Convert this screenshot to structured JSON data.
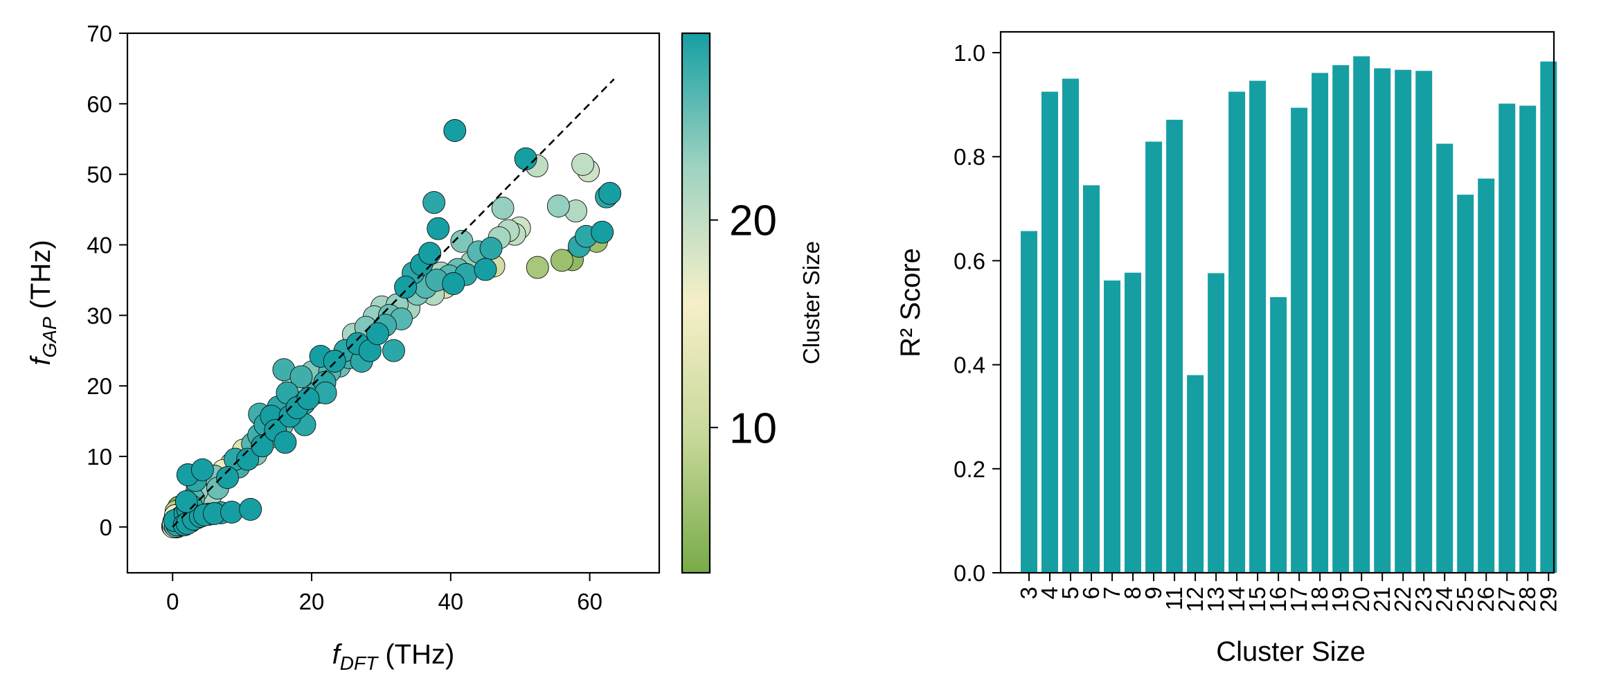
{
  "colors": {
    "bar": "#169fa3",
    "cmap": [
      "#78ab48",
      "#c6d899",
      "#f6efc8",
      "#9fd3c1",
      "#169fa3"
    ],
    "dashed_line": "#000000",
    "marker_edge": "#111111"
  },
  "chart_data": [
    {
      "type": "scatter",
      "xlabel_sym": "f",
      "xlabel_sub": "DFT",
      "xlabel_unit": " (THz)",
      "ylabel_sym": "f",
      "ylabel_sub": "GAP",
      "ylabel_unit": " (THz)",
      "xlim": [
        -6.5,
        70
      ],
      "ylim": [
        -6.5,
        70
      ],
      "xticks": [
        "0",
        "20",
        "40",
        "60"
      ],
      "yticks": [
        "0",
        "10",
        "20",
        "30",
        "40",
        "50",
        "60",
        "70"
      ],
      "reference_line": {
        "from": [
          0,
          0
        ],
        "to": [
          63.5,
          63.5
        ],
        "style": "dashed"
      },
      "colorbar": {
        "label": "Cluster Size",
        "range": [
          3,
          29
        ],
        "ticks": [
          "10",
          "20"
        ]
      },
      "points": [
        [
          0.0,
          0.1,
          12
        ],
        [
          0.1,
          0.0,
          15
        ],
        [
          0.2,
          0.3,
          5
        ],
        [
          0.3,
          0.2,
          18
        ],
        [
          0.4,
          0.1,
          25
        ],
        [
          0.5,
          0.6,
          9
        ],
        [
          0.6,
          0.3,
          28
        ],
        [
          0.7,
          0.5,
          20
        ],
        [
          0.8,
          0.2,
          13
        ],
        [
          0.9,
          0.7,
          27
        ],
        [
          0.2,
          0.8,
          6
        ],
        [
          0.5,
          1.0,
          11
        ],
        [
          0.1,
          0.5,
          22
        ],
        [
          0.3,
          0.9,
          29
        ],
        [
          0.6,
          0.0,
          4
        ],
        [
          0.8,
          1.2,
          16
        ],
        [
          1.0,
          0.8,
          26
        ],
        [
          1.1,
          1.3,
          24
        ],
        [
          1.3,
          0.9,
          10
        ],
        [
          1.4,
          1.5,
          28
        ],
        [
          1.6,
          1.2,
          21
        ],
        [
          1.8,
          1.9,
          29
        ],
        [
          1.2,
          2.0,
          7
        ],
        [
          0.9,
          2.8,
          4
        ],
        [
          0.4,
          1.6,
          17
        ],
        [
          2.0,
          1.8,
          27
        ],
        [
          2.2,
          2.4,
          29
        ],
        [
          2.5,
          2.1,
          23
        ],
        [
          2.7,
          3.0,
          28
        ],
        [
          0.5,
          2.2,
          8
        ],
        [
          1.7,
          0.3,
          29
        ],
        [
          2.1,
          0.5,
          29
        ],
        [
          2.6,
          0.8,
          28
        ],
        [
          3.0,
          1.1,
          29
        ],
        [
          3.5,
          1.3,
          28
        ],
        [
          4.0,
          1.5,
          29
        ],
        [
          4.6,
          1.7,
          29
        ],
        [
          5.2,
          1.8,
          28
        ],
        [
          6.0,
          1.9,
          29
        ],
        [
          7.0,
          2.0,
          28
        ],
        [
          8.5,
          2.1,
          29
        ],
        [
          11.2,
          2.5,
          29
        ],
        [
          2.2,
          7.4,
          29
        ],
        [
          3.3,
          6.6,
          28
        ],
        [
          4.3,
          8.1,
          29
        ],
        [
          2.0,
          3.6,
          29
        ],
        [
          3.0,
          4.0,
          26
        ],
        [
          3.5,
          5.1,
          23
        ],
        [
          4.6,
          5.3,
          14
        ],
        [
          4.0,
          6.3,
          18
        ],
        [
          5.0,
          5.8,
          20
        ],
        [
          6.0,
          7.2,
          24
        ],
        [
          5.5,
          4.5,
          22
        ],
        [
          6.5,
          5.5,
          25
        ],
        [
          7.3,
          8.0,
          15
        ],
        [
          7.9,
          7.0,
          29
        ],
        [
          8.5,
          9.0,
          12
        ],
        [
          9.0,
          9.6,
          28
        ],
        [
          9.5,
          8.5,
          27
        ],
        [
          10.2,
          10.9,
          13
        ],
        [
          10.8,
          9.6,
          29
        ],
        [
          11.5,
          11.8,
          26
        ],
        [
          12.0,
          10.3,
          24
        ],
        [
          12.4,
          13.0,
          27
        ],
        [
          12.9,
          11.5,
          29
        ],
        [
          13.3,
          14.5,
          28
        ],
        [
          13.8,
          12.6,
          22
        ],
        [
          14.2,
          15.7,
          29
        ],
        [
          14.8,
          13.7,
          29
        ],
        [
          15.2,
          17.0,
          28
        ],
        [
          15.8,
          14.5,
          25
        ],
        [
          16.0,
          22.3,
          27
        ],
        [
          16.5,
          19.0,
          28
        ],
        [
          16.9,
          15.7,
          29
        ],
        [
          17.4,
          20.5,
          21
        ],
        [
          17.9,
          16.9,
          29
        ],
        [
          18.5,
          21.3,
          27
        ],
        [
          18.9,
          17.5,
          28
        ],
        [
          19.5,
          18.2,
          29
        ],
        [
          20.1,
          22.0,
          24
        ],
        [
          20.7,
          19.0,
          27
        ],
        [
          21.3,
          24.2,
          29
        ],
        [
          21.9,
          20.5,
          28
        ],
        [
          22.6,
          22.0,
          26
        ],
        [
          23.3,
          23.5,
          29
        ],
        [
          24.0,
          22.8,
          25
        ],
        [
          24.8,
          25.0,
          28
        ],
        [
          25.4,
          24.0,
          27
        ],
        [
          26.0,
          27.3,
          22
        ],
        [
          26.6,
          26.0,
          29
        ],
        [
          27.2,
          23.5,
          28
        ],
        [
          27.8,
          28.3,
          24
        ],
        [
          28.4,
          25.0,
          29
        ],
        [
          29.0,
          29.8,
          23
        ],
        [
          29.5,
          27.4,
          29
        ],
        [
          30.1,
          31.2,
          22
        ],
        [
          30.6,
          28.6,
          27
        ],
        [
          31.2,
          30.0,
          25
        ],
        [
          31.8,
          25.0,
          28
        ],
        [
          32.3,
          31.5,
          23
        ],
        [
          32.9,
          29.5,
          26
        ],
        [
          33.5,
          34.0,
          29
        ],
        [
          34.0,
          31.0,
          22
        ],
        [
          34.6,
          36.0,
          28
        ],
        [
          35.2,
          33.0,
          24
        ],
        [
          35.8,
          37.2,
          29
        ],
        [
          36.4,
          34.0,
          26
        ],
        [
          37.0,
          38.8,
          29
        ],
        [
          37.5,
          33.0,
          21
        ],
        [
          38.0,
          35.0,
          27
        ],
        [
          38.6,
          36.0,
          22
        ],
        [
          39.2,
          34.0,
          12
        ],
        [
          39.8,
          35.6,
          26
        ],
        [
          40.4,
          34.5,
          29
        ],
        [
          41.0,
          36.5,
          25
        ],
        [
          41.6,
          40.5,
          24
        ],
        [
          42.2,
          35.8,
          28
        ],
        [
          43.0,
          37.5,
          23
        ],
        [
          44.0,
          39.0,
          26
        ],
        [
          45.0,
          36.5,
          29
        ],
        [
          45.8,
          39.5,
          28
        ],
        [
          46.2,
          37.0,
          11
        ],
        [
          47.0,
          41.0,
          22
        ],
        [
          47.5,
          45.2,
          23
        ],
        [
          48.3,
          42.0,
          21
        ],
        [
          49.2,
          41.5,
          20
        ],
        [
          49.9,
          42.4,
          19
        ],
        [
          50.8,
          52.2,
          29
        ],
        [
          52.4,
          51.2,
          20
        ],
        [
          52.5,
          36.8,
          7
        ],
        [
          55.5,
          45.5,
          23
        ],
        [
          56.0,
          37.8,
          6
        ],
        [
          57.5,
          37.9,
          5
        ],
        [
          58.0,
          44.8,
          21
        ],
        [
          58.5,
          39.8,
          28
        ],
        [
          59.0,
          51.4,
          20
        ],
        [
          59.5,
          41.2,
          28
        ],
        [
          59.8,
          50.5,
          19
        ],
        [
          61.0,
          40.5,
          6
        ],
        [
          61.8,
          41.8,
          29
        ],
        [
          62.4,
          46.8,
          28
        ],
        [
          62.9,
          47.3,
          29
        ],
        [
          40.6,
          56.2,
          29
        ],
        [
          37.6,
          46.0,
          28
        ],
        [
          38.2,
          42.3,
          29
        ],
        [
          12.5,
          16.0,
          27
        ],
        [
          16.2,
          12.0,
          29
        ],
        [
          19.0,
          14.5,
          28
        ],
        [
          22.0,
          19.0,
          28
        ]
      ]
    },
    {
      "type": "bar",
      "xlabel": "Cluster Size",
      "ylabel": "R² Score",
      "ylim": [
        0,
        1.04
      ],
      "yticks": [
        "0.0",
        "0.2",
        "0.4",
        "0.6",
        "0.8",
        "1.0"
      ],
      "categories": [
        "3",
        "4",
        "5",
        "6",
        "7",
        "8",
        "9",
        "11",
        "12",
        "13",
        "14",
        "15",
        "16",
        "17",
        "18",
        "19",
        "20",
        "21",
        "22",
        "23",
        "24",
        "25",
        "26",
        "27",
        "28",
        "29"
      ],
      "values": [
        0.657,
        0.925,
        0.95,
        0.745,
        0.562,
        0.577,
        0.829,
        0.871,
        0.38,
        0.576,
        0.925,
        0.946,
        0.53,
        0.894,
        0.961,
        0.976,
        0.993,
        0.97,
        0.967,
        0.965,
        0.825,
        0.727,
        0.758,
        0.902,
        0.898,
        0.983
      ]
    }
  ]
}
